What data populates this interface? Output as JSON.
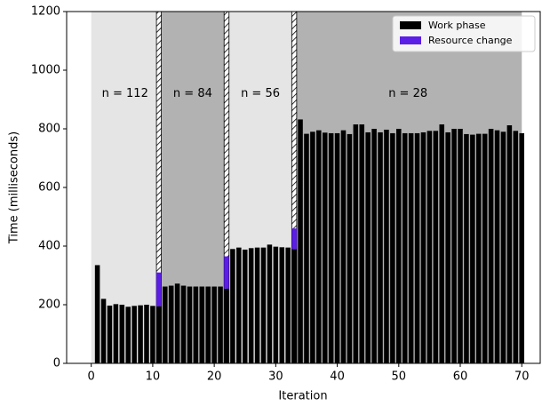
{
  "chart_data": {
    "type": "bar",
    "stacked": true,
    "x_label": "Iteration",
    "y_label": "Time (milliseconds)",
    "x": [
      1,
      2,
      3,
      4,
      5,
      6,
      7,
      8,
      9,
      10,
      11,
      12,
      13,
      14,
      15,
      16,
      17,
      18,
      19,
      20,
      21,
      22,
      23,
      24,
      25,
      26,
      27,
      28,
      29,
      30,
      31,
      32,
      33,
      34,
      35,
      36,
      37,
      38,
      39,
      40,
      41,
      42,
      43,
      44,
      45,
      46,
      47,
      48,
      49,
      50,
      51,
      52,
      53,
      54,
      55,
      56,
      57,
      58,
      59,
      60,
      61,
      62,
      63,
      64,
      65,
      66,
      67,
      68,
      69,
      70
    ],
    "series": [
      {
        "name": "Work phase",
        "color": "#000000",
        "values": [
          335,
          220,
          197,
          202,
          200,
          193,
          196,
          198,
          200,
          196,
          195,
          262,
          265,
          272,
          265,
          262,
          262,
          262,
          262,
          262,
          262,
          255,
          390,
          395,
          388,
          393,
          395,
          395,
          405,
          398,
          396,
          395,
          390,
          832,
          783,
          790,
          795,
          787,
          785,
          785,
          795,
          782,
          815,
          815,
          788,
          800,
          788,
          797,
          785,
          800,
          785,
          785,
          785,
          788,
          793,
          793,
          815,
          788,
          800,
          800,
          782,
          780,
          783,
          783,
          800,
          795,
          790,
          812,
          793,
          785
        ]
      },
      {
        "name": "Resource change",
        "color": "#5b1ee6",
        "values": [
          null,
          null,
          null,
          null,
          null,
          null,
          null,
          null,
          null,
          null,
          115,
          null,
          null,
          null,
          null,
          null,
          null,
          null,
          null,
          null,
          null,
          110,
          null,
          null,
          null,
          null,
          null,
          null,
          null,
          null,
          null,
          null,
          70,
          null,
          null,
          null,
          null,
          null,
          null,
          null,
          null,
          null,
          null,
          null,
          null,
          null,
          null,
          null,
          null,
          null,
          null,
          null,
          null,
          null,
          null,
          null,
          null,
          null,
          null,
          null,
          null,
          null,
          null,
          null,
          null,
          null,
          null,
          null,
          null,
          null
        ]
      }
    ],
    "phases": [
      {
        "label": "n = 112",
        "start": 0,
        "end": 11,
        "color": "#e5e5e5"
      },
      {
        "label": "n = 84",
        "start": 11,
        "end": 22,
        "color": "#b2b2b2"
      },
      {
        "label": "n = 56",
        "start": 22,
        "end": 33,
        "color": "#e5e5e5"
      },
      {
        "label": "n = 28",
        "start": 33,
        "end": 70,
        "color": "#b2b2b2"
      }
    ],
    "phase_label_y": 920,
    "xlim": [
      -4,
      73
    ],
    "xticks": [
      0,
      10,
      20,
      30,
      40,
      50,
      60,
      70
    ],
    "ylim": [
      0,
      1200
    ],
    "yticks": [
      0,
      200,
      400,
      600,
      800,
      1000,
      1200
    ],
    "legend": "upper right"
  }
}
